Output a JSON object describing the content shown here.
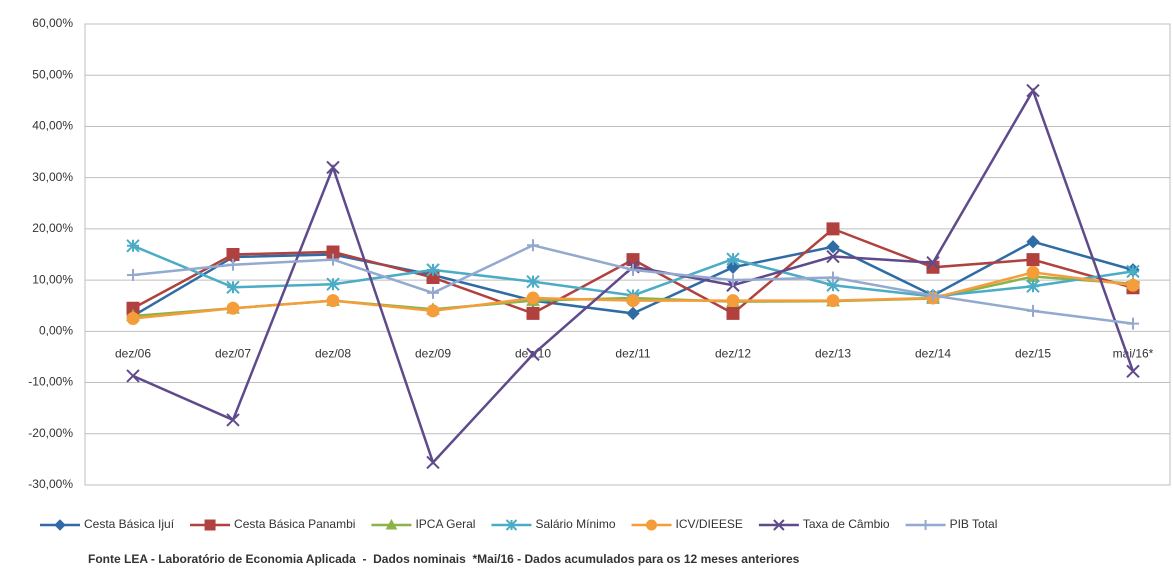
{
  "chart_data": {
    "type": "line",
    "categories": [
      "dez/06",
      "dez/07",
      "dez/08",
      "dez/09",
      "dez/10",
      "dez/11",
      "dez/12",
      "dez/13",
      "dez/14",
      "dez/15",
      "mai/16*"
    ],
    "series": [
      {
        "name": "Cesta Básica Ijuí",
        "color": "#2f6ca6",
        "marker": "diamond",
        "values": [
          3,
          14.5,
          15,
          11,
          6,
          3.5,
          12.5,
          16.5,
          7,
          17.5,
          12
        ]
      },
      {
        "name": "Cesta Básica Panambi",
        "color": "#b0413e",
        "marker": "square",
        "values": [
          4.5,
          15,
          15.5,
          10.5,
          3.5,
          14,
          3.5,
          20,
          12.5,
          14,
          8.5
        ]
      },
      {
        "name": "IPCA Geral",
        "color": "#8bb34a",
        "marker": "triangle",
        "values": [
          3,
          4.5,
          6,
          4.3,
          6,
          6.5,
          5.8,
          5.9,
          6.4,
          10.7,
          9.3
        ]
      },
      {
        "name": "Salário Mínimo",
        "color": "#4bacc6",
        "marker": "asterisk",
        "values": [
          16.7,
          8.6,
          9.2,
          12,
          9.7,
          7,
          14.1,
          9,
          6.8,
          8.8,
          11.7
        ]
      },
      {
        "name": "ICV/DIEESE",
        "color": "#f59d3b",
        "marker": "circle",
        "values": [
          2.5,
          4.5,
          6,
          4,
          6.5,
          6,
          6,
          6,
          6.5,
          11.5,
          9
        ]
      },
      {
        "name": "Taxa de Câmbio",
        "color": "#5f4a8b",
        "marker": "x",
        "values": [
          -8.7,
          -17.3,
          32,
          -25.6,
          -4.5,
          12.6,
          9,
          14.6,
          13.4,
          47,
          -7.8
        ]
      },
      {
        "name": "PIB Total",
        "color": "#93a9cf",
        "marker": "plus",
        "values": [
          11,
          13,
          14,
          7.5,
          16.8,
          12,
          10,
          10.5,
          7,
          4,
          1.5
        ]
      }
    ],
    "ylim": [
      -30,
      60
    ],
    "yticks": [
      {
        "value": -30,
        "label": "-30,00%"
      },
      {
        "value": -20,
        "label": "-20,00%"
      },
      {
        "value": -10,
        "label": "-10,00%"
      },
      {
        "value": 0,
        "label": "0,00%"
      },
      {
        "value": 10,
        "label": "10,00%"
      },
      {
        "value": 20,
        "label": "20,00%"
      },
      {
        "value": 30,
        "label": "30,00%"
      },
      {
        "value": 40,
        "label": "40,00%"
      },
      {
        "value": 50,
        "label": "50,00%"
      },
      {
        "value": 60,
        "label": "60,00%"
      }
    ],
    "grid": true,
    "legend": "bottom",
    "note": "Fonte LEA - Laboratório de Economia Aplicada  -  Dados nominais  *Mai/16 - Dados acumulados para os 12 meses anteriores"
  }
}
